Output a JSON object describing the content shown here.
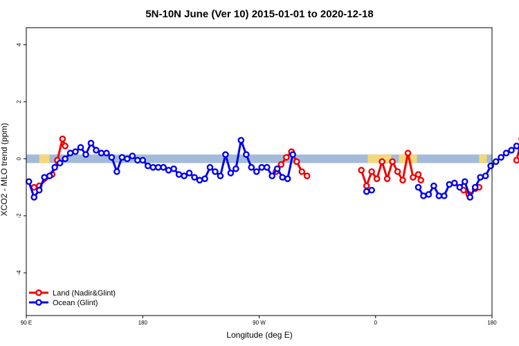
{
  "chart_data": {
    "type": "line",
    "title": "5N-10N June (Ver 10)   2015-01-01 to 2020-12-18",
    "xlabel": "Longitude (deg E)",
    "ylabel": "XCO2 - MLO trend (ppm)",
    "xlim": [
      90,
      450
    ],
    "ylim": [
      -5.5,
      4.6
    ],
    "x_ticks": [
      {
        "value": 90,
        "label": "90 E"
      },
      {
        "value": 180,
        "label": "180"
      },
      {
        "value": 270,
        "label": "90 W"
      },
      {
        "value": 360,
        "label": "0"
      },
      {
        "value": 450,
        "label": "180"
      }
    ],
    "x_ticks_extra": [
      {
        "value": 450,
        "label": "90 E"
      }
    ],
    "y_ticks": [
      {
        "value": 4,
        "label": "4"
      },
      {
        "value": 2,
        "label": "2"
      },
      {
        "value": 0,
        "label": "0"
      },
      {
        "value": -2,
        "label": "-2"
      },
      {
        "value": -4,
        "label": "-4"
      }
    ],
    "band": {
      "y_min": -0.15,
      "y_max": 0.15,
      "color": "#a3bbd9",
      "land_color": "#f3d77b"
    },
    "land_segments": [
      [
        100,
        108
      ],
      [
        354,
        372
      ],
      [
        378,
        392
      ],
      [
        440,
        446
      ]
    ],
    "legend_position": "bottom-left",
    "series": [
      {
        "name": "Land (Nadir&Glint)",
        "color": "#ee0000",
        "segments": [
          [
            [
              96,
              -1.0
            ],
            [
              100,
              -0.95
            ],
            [
              110,
              -0.55
            ],
            [
              114,
              -0.05
            ],
            [
              118,
              0.7
            ],
            [
              120,
              0.45
            ]
          ],
          [
            [
              283,
              -0.45
            ],
            [
              287,
              -0.2
            ],
            [
              291,
              0.05
            ],
            [
              295,
              0.25
            ],
            [
              299,
              -0.1
            ],
            [
              303,
              -0.45
            ],
            [
              307,
              -0.6
            ]
          ],
          [
            [
              349,
              -0.4
            ],
            [
              353,
              -0.95
            ],
            [
              357,
              -0.45
            ],
            [
              361,
              -0.7
            ],
            [
              365,
              -0.1
            ],
            [
              369,
              -0.7
            ],
            [
              373,
              -0.1
            ],
            [
              377,
              -0.45
            ],
            [
              381,
              -0.75
            ],
            [
              385,
              0.2
            ],
            [
              389,
              -0.65
            ],
            [
              393,
              -0.55
            ],
            [
              395,
              -0.75
            ]
          ],
          [
            [
              428,
              -1.1
            ],
            [
              432,
              -1.25
            ]
          ],
          [
            [
              437,
              -1.05
            ],
            [
              440,
              -1.0
            ]
          ],
          [
            [
              469,
              -0.05
            ],
            [
              473,
              0.7
            ],
            [
              475,
              0.45
            ]
          ]
        ]
      },
      {
        "name": "Ocean (Glint)",
        "color": "#0000ee",
        "segments": [
          [
            [
              92,
              -0.8
            ],
            [
              96,
              -1.35
            ],
            [
              100,
              -1.1
            ],
            [
              104,
              -0.65
            ],
            [
              108,
              -0.6
            ],
            [
              112,
              -0.3
            ],
            [
              116,
              -0.15
            ],
            [
              120,
              0.0
            ],
            [
              124,
              0.2
            ],
            [
              128,
              0.25
            ],
            [
              132,
              0.4
            ],
            [
              136,
              0.15
            ],
            [
              140,
              0.55
            ],
            [
              144,
              0.3
            ],
            [
              148,
              0.2
            ],
            [
              152,
              0.2
            ],
            [
              156,
              0.05
            ],
            [
              160,
              -0.45
            ],
            [
              164,
              0.05
            ],
            [
              168,
              0.0
            ],
            [
              172,
              0.1
            ],
            [
              176,
              -0.05
            ],
            [
              180,
              -0.05
            ],
            [
              184,
              -0.25
            ],
            [
              188,
              -0.3
            ],
            [
              192,
              -0.3
            ],
            [
              196,
              -0.3
            ],
            [
              200,
              -0.4
            ],
            [
              204,
              -0.35
            ],
            [
              208,
              -0.55
            ],
            [
              212,
              -0.6
            ],
            [
              216,
              -0.5
            ],
            [
              220,
              -0.65
            ],
            [
              224,
              -0.75
            ],
            [
              228,
              -0.7
            ],
            [
              232,
              -0.3
            ],
            [
              236,
              -0.45
            ],
            [
              240,
              -0.6
            ],
            [
              244,
              0.15
            ],
            [
              248,
              -0.5
            ],
            [
              252,
              -0.35
            ],
            [
              256,
              0.65
            ],
            [
              260,
              0.15
            ],
            [
              264,
              -0.3
            ],
            [
              268,
              -0.45
            ],
            [
              272,
              -0.3
            ],
            [
              276,
              -0.3
            ],
            [
              280,
              -0.6
            ],
            [
              284,
              -0.35
            ],
            [
              288,
              -0.65
            ],
            [
              292,
              -0.7
            ],
            [
              296,
              0.15
            ]
          ],
          [
            [
              353,
              -1.15
            ],
            [
              357,
              -1.1
            ]
          ],
          [
            [
              393,
              -1.0
            ],
            [
              397,
              -1.3
            ],
            [
              401,
              -1.25
            ],
            [
              405,
              -0.95
            ],
            [
              409,
              -1.3
            ],
            [
              413,
              -1.3
            ],
            [
              417,
              -0.9
            ],
            [
              421,
              -0.85
            ],
            [
              425,
              -1.0
            ],
            [
              429,
              -0.8
            ],
            [
              433,
              -1.35
            ],
            [
              437,
              -1.0
            ],
            [
              441,
              -0.65
            ],
            [
              445,
              -0.6
            ],
            [
              449,
              -0.25
            ],
            [
              453,
              -0.1
            ],
            [
              457,
              0.05
            ],
            [
              461,
              0.2
            ],
            [
              465,
              0.3
            ],
            [
              469,
              0.45
            ],
            [
              473,
              0.2
            ],
            [
              477,
              0.55
            ],
            [
              481,
              0.3
            ],
            [
              485,
              0.25
            ],
            [
              489,
              0.25
            ],
            [
              493,
              0.05
            ],
            [
              497,
              -0.5
            ]
          ]
        ]
      }
    ]
  }
}
